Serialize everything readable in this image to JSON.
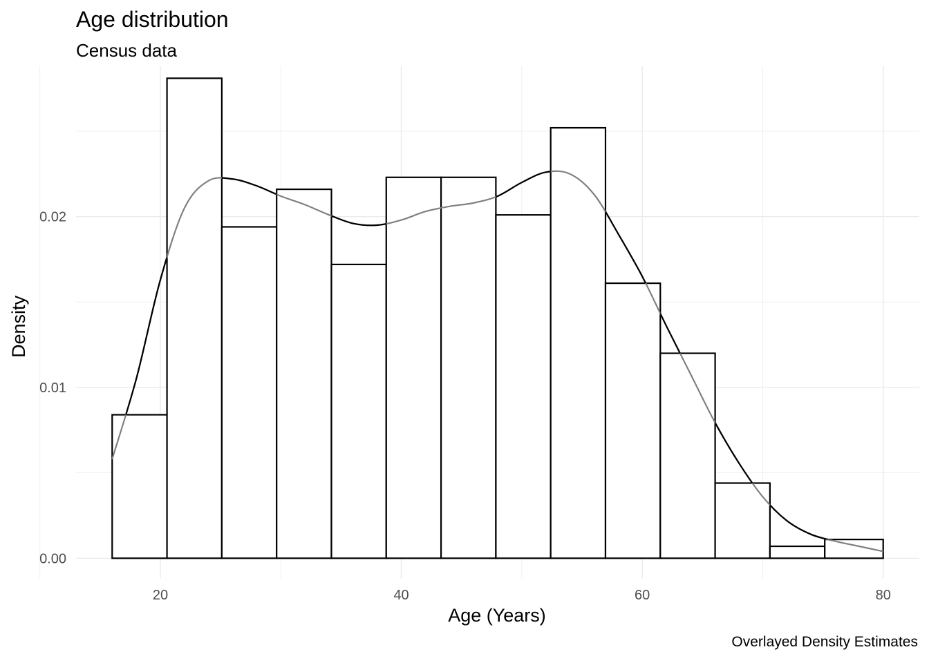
{
  "chart_data": {
    "type": "histogram",
    "title": "Age distribution",
    "subtitle": "Census data",
    "caption": "Overlayed Density Estimates",
    "xlabel": "Age (Years)",
    "ylabel": "Density",
    "xlim": [
      13,
      83
    ],
    "ylim": [
      -0.0012,
      0.0288
    ],
    "x_ticks": [
      20,
      40,
      60,
      80
    ],
    "x_tick_labels": [
      "20",
      "40",
      "60",
      "80"
    ],
    "y_ticks": [
      0,
      0.01,
      0.02
    ],
    "y_tick_labels": [
      "0.00",
      "0.01",
      "0.02"
    ],
    "grid": true,
    "bins": [
      {
        "start": 16.0,
        "end": 20.55,
        "density": 0.0084
      },
      {
        "start": 20.55,
        "end": 25.1,
        "density": 0.0281
      },
      {
        "start": 25.1,
        "end": 29.65,
        "density": 0.0194
      },
      {
        "start": 29.65,
        "end": 34.2,
        "density": 0.0216
      },
      {
        "start": 34.2,
        "end": 38.75,
        "density": 0.0172
      },
      {
        "start": 38.75,
        "end": 43.3,
        "density": 0.0223
      },
      {
        "start": 43.3,
        "end": 47.85,
        "density": 0.0223
      },
      {
        "start": 47.85,
        "end": 52.4,
        "density": 0.0201
      },
      {
        "start": 52.4,
        "end": 56.95,
        "density": 0.0252
      },
      {
        "start": 56.95,
        "end": 61.5,
        "density": 0.0161
      },
      {
        "start": 61.5,
        "end": 66.05,
        "density": 0.012
      },
      {
        "start": 66.05,
        "end": 70.6,
        "density": 0.0044
      },
      {
        "start": 70.6,
        "end": 75.15,
        "density": 0.0007
      },
      {
        "start": 75.15,
        "end": 80.0,
        "density": 0.0011
      }
    ],
    "density_curve": {
      "x": [
        16,
        18,
        20,
        22,
        24,
        26,
        28,
        30,
        32,
        34,
        36,
        38,
        40,
        42,
        44,
        46,
        48,
        50,
        52,
        54,
        56,
        58,
        60,
        62,
        64,
        66,
        68,
        70,
        72,
        74,
        76,
        78,
        80
      ],
      "y": [
        0.0058,
        0.0105,
        0.0163,
        0.0205,
        0.0221,
        0.0222,
        0.0218,
        0.0212,
        0.0207,
        0.0201,
        0.0196,
        0.0195,
        0.0198,
        0.0203,
        0.0206,
        0.0208,
        0.0212,
        0.022,
        0.0226,
        0.0225,
        0.0213,
        0.019,
        0.0165,
        0.0136,
        0.0108,
        0.008,
        0.0056,
        0.0036,
        0.0022,
        0.0014,
        0.001,
        0.0007,
        0.0004
      ],
      "colors": [
        "#808080",
        "#000000"
      ]
    }
  }
}
